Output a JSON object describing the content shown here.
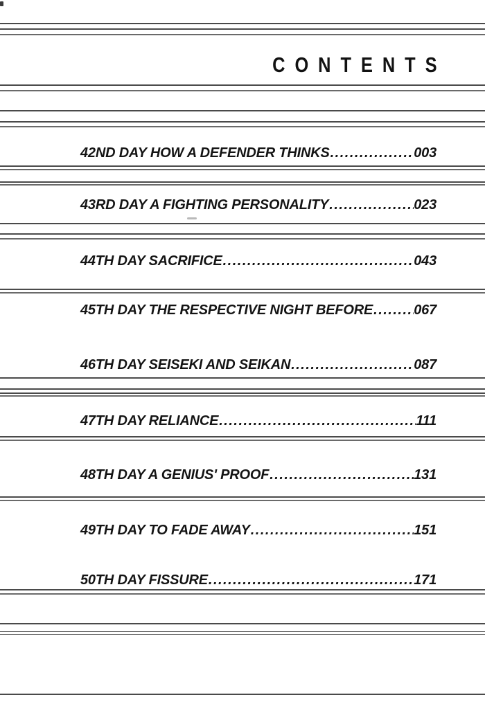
{
  "page": {
    "title": "CONTENTS"
  },
  "entries": [
    {
      "title": "42ND DAY HOW A DEFENDER THINKS",
      "dots": "............................",
      "page": "003"
    },
    {
      "title": "43RD DAY A FIGHTING PERSONALITY",
      "dots": "...........................",
      "page": "023"
    },
    {
      "title": "44TH DAY SACRIFICE",
      "dots": "....................................................",
      "page": "043"
    },
    {
      "title": "45TH DAY THE RESPECTIVE NIGHT BEFORE",
      "dots": "....................",
      "page": "067"
    },
    {
      "title": "46TH DAY SEISEKI AND SEIKAN",
      "dots": ".................................",
      "page": "087"
    },
    {
      "title": "47TH DAY RELIANCE",
      "dots": ".....................................................",
      "page": "111"
    },
    {
      "title": "48TH DAY A GENIUS' PROOF",
      "dots": ".........................................",
      "page": "131"
    },
    {
      "title": "49TH DAY TO FADE AWAY",
      "dots": "............................................",
      "page": "151"
    },
    {
      "title": "50TH DAY FISSURE",
      "dots": ".......................................................",
      "page": "171"
    }
  ],
  "colors": {
    "background": "#ffffff",
    "ink": "#141414",
    "rule_dark": "#4a4a4a",
    "rule_gray": "#6a6a6a"
  }
}
